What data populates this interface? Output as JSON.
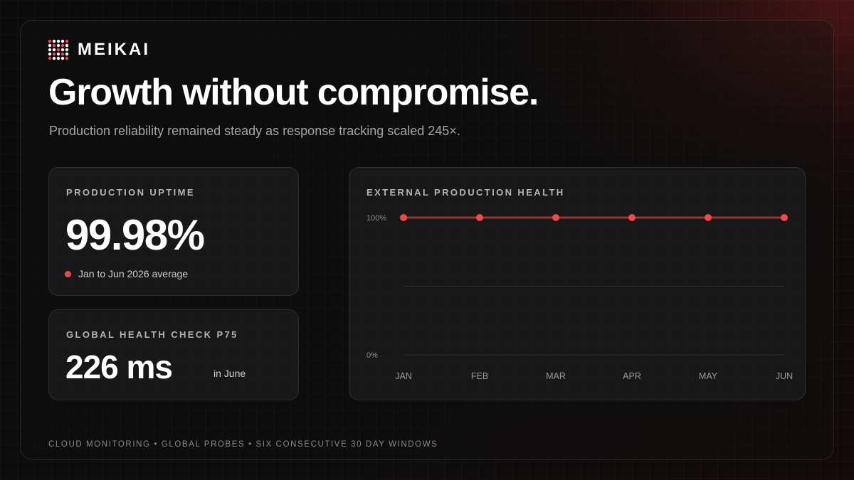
{
  "brand": {
    "name": "MEIKAI",
    "logo": "meikai-dot-grid-logo"
  },
  "hero": {
    "headline": "Growth without compromise.",
    "subhead": "Production reliability remained steady as response tracking scaled 245×."
  },
  "uptime_card": {
    "label": "PRODUCTION UPTIME",
    "value": "99.98%",
    "note": "Jan to Jun 2026 average"
  },
  "p75_card": {
    "label": "GLOBAL HEALTH CHECK P75",
    "value": "226 ms",
    "note": "in June"
  },
  "colors": {
    "accent": "#f0494c",
    "background": "#090909"
  },
  "chart_data": {
    "type": "line",
    "title": "EXTERNAL PRODUCTION HEALTH",
    "categories": [
      "JAN",
      "FEB",
      "MAR",
      "APR",
      "MAY",
      "JUN"
    ],
    "series": [
      {
        "values": [
          100,
          100,
          100,
          100,
          100,
          100
        ]
      }
    ],
    "ylim": [
      0,
      100
    ],
    "y_tick_labels": [
      "100%",
      "0%"
    ],
    "grid": true
  },
  "footer": {
    "text": "CLOUD MONITORING • GLOBAL PROBES • SIX CONSECUTIVE 30 DAY WINDOWS"
  }
}
